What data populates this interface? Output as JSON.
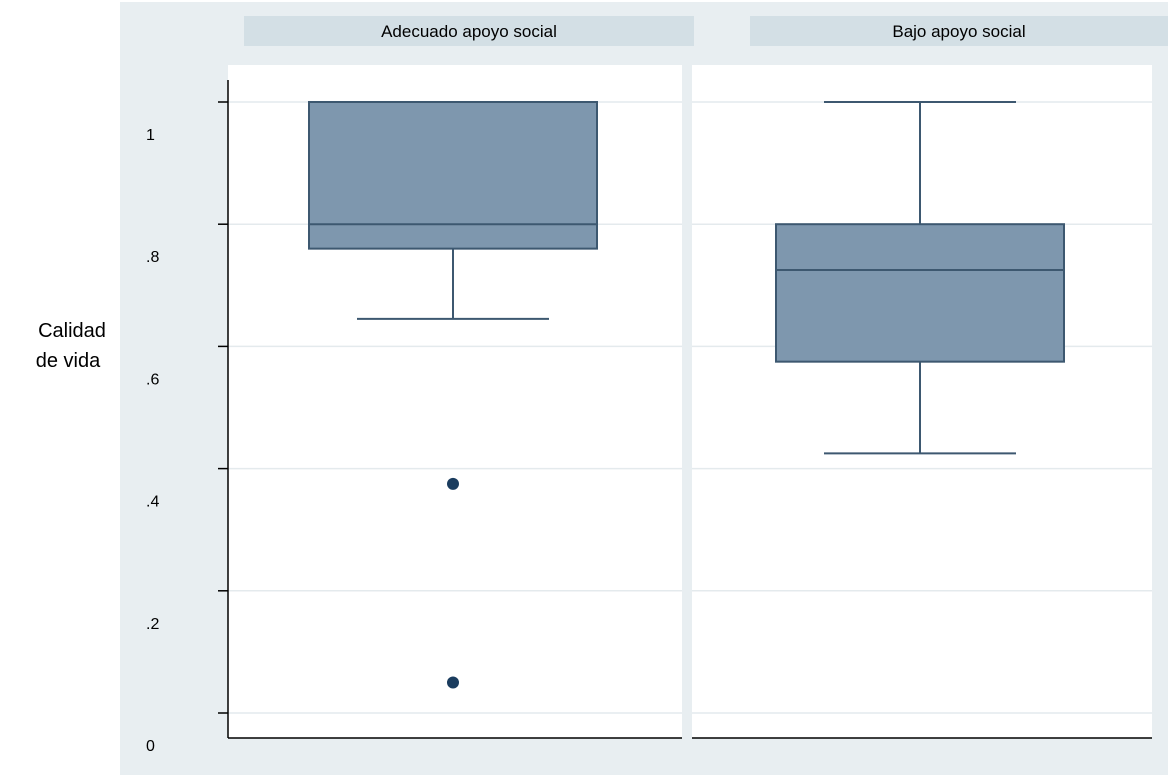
{
  "chart_data": {
    "type": "box",
    "ylabel_lines": [
      "Calidad",
      "de vida"
    ],
    "ylim": [
      0,
      1
    ],
    "yticks": [
      {
        "value": 0,
        "label": "0"
      },
      {
        "value": 0.2,
        "label": ".2"
      },
      {
        "value": 0.4,
        "label": ".4"
      },
      {
        "value": 0.6,
        "label": ".6"
      },
      {
        "value": 0.8,
        "label": ".8"
      },
      {
        "value": 1,
        "label": "1"
      }
    ],
    "grid": true,
    "colors": {
      "box_fill": "#7e97ae",
      "box_stroke": "#3d5870",
      "whisker": "#3d5870",
      "outlier": "#1a3c5e",
      "background": "#e8eef1",
      "strip": "#d3dfe5",
      "grid": "#e4eaed"
    },
    "panels": [
      {
        "label": "Adecuado apoyo social",
        "whisker_low": 0.645,
        "q1": 0.76,
        "median": 0.8,
        "q3": 1.0,
        "whisker_high": 1.0,
        "outliers": [
          0.375,
          0.05
        ]
      },
      {
        "label": "Bajo apoyo social",
        "whisker_low": 0.425,
        "q1": 0.575,
        "median": 0.725,
        "q3": 0.8,
        "whisker_high": 1.0,
        "outliers": []
      }
    ]
  }
}
